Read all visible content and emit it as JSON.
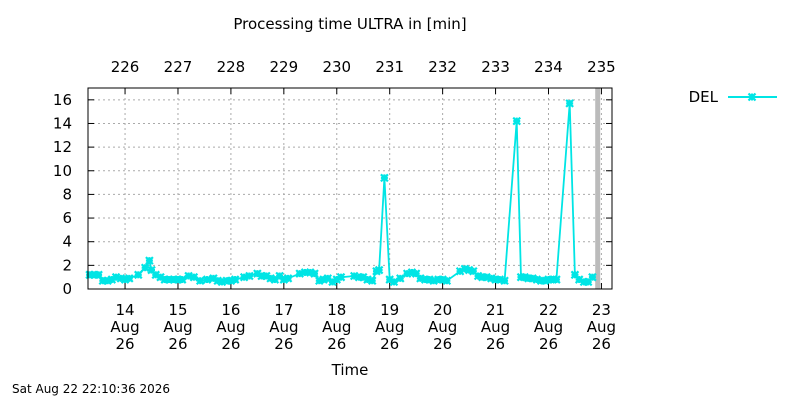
{
  "chart_data": {
    "type": "line",
    "title": "Processing time ULTRA in [min]",
    "xlabel": "Time",
    "ylabel": "",
    "ylim": [
      0,
      17
    ],
    "y_ticks": [
      0,
      2,
      4,
      6,
      8,
      10,
      12,
      14,
      16
    ],
    "xlim": [
      13.3,
      23.2
    ],
    "x_ticks": [
      {
        "x": 14,
        "day": "14",
        "month": "Aug",
        "year": "26"
      },
      {
        "x": 15,
        "day": "15",
        "month": "Aug",
        "year": "26"
      },
      {
        "x": 16,
        "day": "16",
        "month": "Aug",
        "year": "26"
      },
      {
        "x": 17,
        "day": "17",
        "month": "Aug",
        "year": "26"
      },
      {
        "x": 18,
        "day": "18",
        "month": "Aug",
        "year": "26"
      },
      {
        "x": 19,
        "day": "19",
        "month": "Aug",
        "year": "26"
      },
      {
        "x": 20,
        "day": "20",
        "month": "Aug",
        "year": "26"
      },
      {
        "x": 21,
        "day": "21",
        "month": "Aug",
        "year": "26"
      },
      {
        "x": 22,
        "day": "22",
        "month": "Aug",
        "year": "26"
      },
      {
        "x": 23,
        "day": "23",
        "month": "Aug",
        "year": "26"
      }
    ],
    "top_ticks": [
      {
        "x": 14,
        "label": "226"
      },
      {
        "x": 15,
        "label": "227"
      },
      {
        "x": 16,
        "label": "228"
      },
      {
        "x": 17,
        "label": "229"
      },
      {
        "x": 18,
        "label": "230"
      },
      {
        "x": 19,
        "label": "231"
      },
      {
        "x": 20,
        "label": "232"
      },
      {
        "x": 21,
        "label": "233"
      },
      {
        "x": 22,
        "label": "234"
      },
      {
        "x": 23,
        "label": "235"
      }
    ],
    "grid": true,
    "legend_position": "top-right outside",
    "now_marker_x": 22.93,
    "series": [
      {
        "name": "DEL",
        "color": "#00e5e5",
        "points": [
          [
            13.33,
            1.2
          ],
          [
            13.42,
            1.2
          ],
          [
            13.5,
            1.2
          ],
          [
            13.58,
            0.7
          ],
          [
            13.67,
            0.7
          ],
          [
            13.75,
            0.8
          ],
          [
            13.83,
            1.0
          ],
          [
            13.92,
            0.9
          ],
          [
            14.0,
            0.8
          ],
          [
            14.08,
            0.9
          ],
          [
            14.25,
            1.2
          ],
          [
            14.38,
            1.8
          ],
          [
            14.46,
            2.4
          ],
          [
            14.5,
            1.6
          ],
          [
            14.58,
            1.2
          ],
          [
            14.67,
            1.0
          ],
          [
            14.75,
            0.8
          ],
          [
            14.83,
            0.8
          ],
          [
            14.92,
            0.8
          ],
          [
            15.0,
            0.8
          ],
          [
            15.08,
            0.8
          ],
          [
            15.2,
            1.1
          ],
          [
            15.3,
            1.0
          ],
          [
            15.42,
            0.7
          ],
          [
            15.55,
            0.8
          ],
          [
            15.67,
            0.9
          ],
          [
            15.75,
            0.7
          ],
          [
            15.83,
            0.6
          ],
          [
            15.92,
            0.7
          ],
          [
            16.0,
            0.7
          ],
          [
            16.08,
            0.8
          ],
          [
            16.25,
            1.0
          ],
          [
            16.35,
            1.1
          ],
          [
            16.5,
            1.3
          ],
          [
            16.58,
            1.1
          ],
          [
            16.67,
            1.1
          ],
          [
            16.75,
            0.9
          ],
          [
            16.83,
            0.8
          ],
          [
            16.92,
            1.1
          ],
          [
            17.0,
            0.8
          ],
          [
            17.08,
            0.9
          ],
          [
            17.3,
            1.3
          ],
          [
            17.4,
            1.4
          ],
          [
            17.5,
            1.4
          ],
          [
            17.58,
            1.3
          ],
          [
            17.67,
            0.7
          ],
          [
            17.75,
            0.8
          ],
          [
            17.83,
            0.9
          ],
          [
            17.92,
            0.6
          ],
          [
            18.0,
            0.8
          ],
          [
            18.08,
            1.0
          ],
          [
            18.33,
            1.1
          ],
          [
            18.42,
            1.0
          ],
          [
            18.5,
            1.0
          ],
          [
            18.58,
            0.8
          ],
          [
            18.67,
            0.7
          ],
          [
            18.75,
            1.5
          ],
          [
            18.8,
            1.6
          ],
          [
            18.9,
            9.4
          ],
          [
            19.0,
            0.8
          ],
          [
            19.08,
            0.6
          ],
          [
            19.2,
            0.9
          ],
          [
            19.33,
            1.3
          ],
          [
            19.42,
            1.4
          ],
          [
            19.5,
            1.3
          ],
          [
            19.58,
            0.9
          ],
          [
            19.67,
            0.8
          ],
          [
            19.75,
            0.8
          ],
          [
            19.83,
            0.7
          ],
          [
            19.92,
            0.8
          ],
          [
            20.0,
            0.8
          ],
          [
            20.08,
            0.7
          ],
          [
            20.33,
            1.5
          ],
          [
            20.42,
            1.7
          ],
          [
            20.5,
            1.6
          ],
          [
            20.58,
            1.5
          ],
          [
            20.67,
            1.1
          ],
          [
            20.75,
            1.0
          ],
          [
            20.83,
            1.0
          ],
          [
            20.92,
            0.9
          ],
          [
            21.0,
            0.8
          ],
          [
            21.08,
            0.8
          ],
          [
            21.17,
            0.7
          ],
          [
            21.4,
            14.2
          ],
          [
            21.48,
            1.0
          ],
          [
            21.55,
            1.0
          ],
          [
            21.62,
            0.9
          ],
          [
            21.7,
            0.9
          ],
          [
            21.78,
            0.8
          ],
          [
            21.86,
            0.7
          ],
          [
            21.93,
            0.7
          ],
          [
            22.0,
            0.8
          ],
          [
            22.08,
            0.8
          ],
          [
            22.15,
            0.8
          ],
          [
            22.4,
            15.7
          ],
          [
            22.5,
            1.2
          ],
          [
            22.58,
            0.8
          ],
          [
            22.67,
            0.6
          ],
          [
            22.75,
            0.6
          ],
          [
            22.83,
            1.0
          ]
        ]
      }
    ]
  },
  "footer": {
    "timestamp": "Sat Aug 22 22:10:36 2026"
  }
}
